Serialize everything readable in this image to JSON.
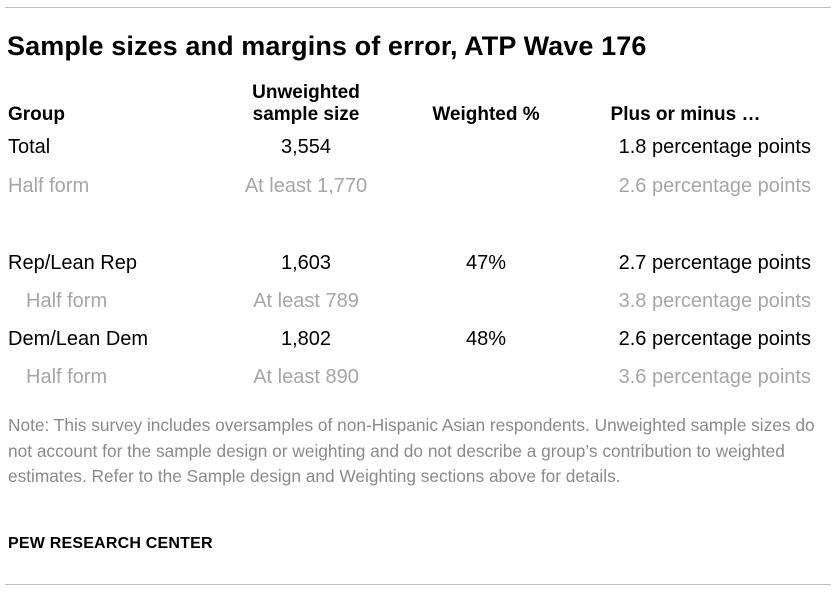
{
  "title": "Sample sizes and margins of error, ATP Wave 176",
  "headers": {
    "group": "Group",
    "size_line1": "Unweighted",
    "size_line2": "sample size",
    "weighted": "Weighted %",
    "plus_minus": "Plus or minus …"
  },
  "rows": [
    {
      "group": "Total",
      "size": "3,554",
      "weighted": "",
      "moe": "1.8 percentage points"
    },
    {
      "group": "Half form",
      "size": "At least 1,770",
      "weighted": "",
      "moe": "2.6 percentage points"
    },
    {
      "group": "Rep/Lean Rep",
      "size": "1,603",
      "weighted": "47%",
      "moe": "2.7 percentage points"
    },
    {
      "group": "Half form",
      "size": "At least 789",
      "weighted": "",
      "moe": "3.8 percentage points"
    },
    {
      "group": "Dem/Lean Dem",
      "size": "1,802",
      "weighted": "48%",
      "moe": "2.6 percentage points"
    },
    {
      "group": "Half form",
      "size": "At least 890",
      "weighted": "",
      "moe": "3.6 percentage points"
    }
  ],
  "note": "Note: This survey includes oversamples of non-Hispanic Asian respondents. Unweighted sample sizes do not account for the sample design or weighting and do not describe a group’s contribution to weighted estimates. Refer to the Sample design and Weighting sections above for details.",
  "source": "PEW RESEARCH CENTER",
  "colors": {
    "text": "#000000",
    "muted": "#a6a6a6",
    "note": "#8a8a8a",
    "rule": "#bdbdbd"
  }
}
